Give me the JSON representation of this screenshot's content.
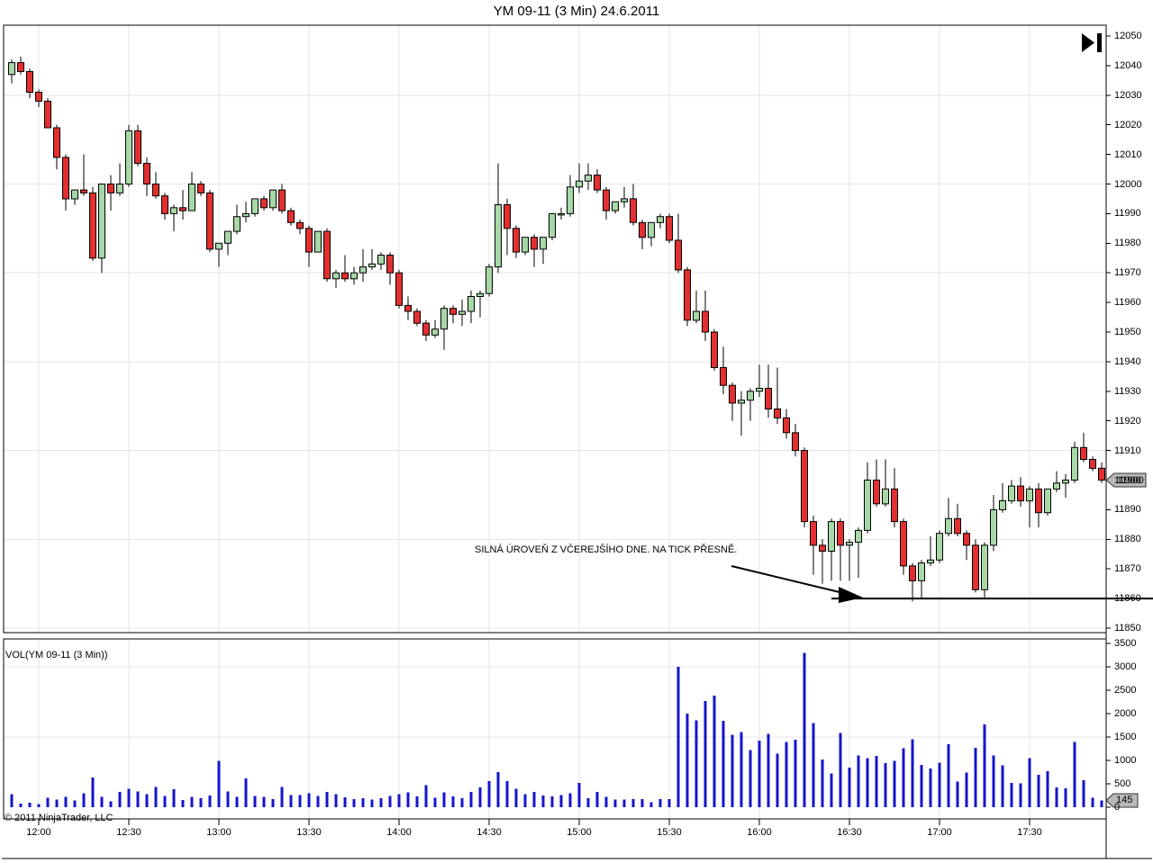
{
  "title": "YM 09-11 (3 Min)  24.6.2011",
  "chart_data": {
    "type": "candlestick",
    "title": "YM 09-11 (3 Min)  24.6.2011",
    "indicator_label": "VOL(YM 09-11 (3 Min))",
    "copyright": "© 2011 NinjaTrader, LLC",
    "annotation": "SILNÁ ÚROVEŇ Z VČEREJŠÍHO DNE. NA TICK PŘESNĚ.",
    "price_badge": "11900",
    "volume_badge": "145",
    "start_time": "11:51",
    "interval_min": 3,
    "price_axis_ticks": [
      12050,
      12040,
      12030,
      12020,
      12010,
      12000,
      11990,
      11980,
      11970,
      11960,
      11950,
      11940,
      11930,
      11920,
      11910,
      11900,
      11890,
      11880,
      11870,
      11860,
      11850
    ],
    "price_gridlines": [
      12030,
      12000,
      11970,
      11940,
      11910,
      11880,
      11850
    ],
    "volume_axis_ticks": [
      3500,
      3000,
      2500,
      2000,
      1500,
      1000,
      500,
      0
    ],
    "volume_gridlines": [
      3000,
      1500
    ],
    "x_ticks": [
      {
        "label": "12:00",
        "bar": 3
      },
      {
        "label": "12:30",
        "bar": 13
      },
      {
        "label": "13:00",
        "bar": 23
      },
      {
        "label": "13:30",
        "bar": 33
      },
      {
        "label": "14:00",
        "bar": 43
      },
      {
        "label": "14:30",
        "bar": 53
      },
      {
        "label": "15:00",
        "bar": 63
      },
      {
        "label": "15:30",
        "bar": 73
      },
      {
        "label": "16:00",
        "bar": 83
      },
      {
        "label": "16:30",
        "bar": 93
      },
      {
        "label": "17:00",
        "bar": 103
      },
      {
        "label": "17:30",
        "bar": 113
      }
    ],
    "price_range": {
      "top": 12050,
      "bottom": 11850
    },
    "volume_range": {
      "top": 3500,
      "bottom": 0
    },
    "support_line": {
      "price": 11860,
      "from_bar": 91,
      "to_bar": 119
    },
    "colors": {
      "up_candle": "#a8d8a8",
      "down_candle": "#e23030",
      "candle_outline": "#000000",
      "volume_bar": "#1414cc",
      "grid": "#e6e6e6",
      "badge": "#b9b9b9",
      "axis": "#000000"
    },
    "bars_format": [
      "open",
      "high",
      "low",
      "close",
      "volume"
    ],
    "bars": [
      [
        12037,
        12042,
        12034,
        12041,
        275
      ],
      [
        12041,
        12043,
        12037,
        12038,
        80
      ],
      [
        12038,
        12039,
        12029,
        12031,
        95
      ],
      [
        12031,
        12032,
        12026,
        12028,
        65
      ],
      [
        12028,
        12029,
        12019,
        12019,
        200
      ],
      [
        12019,
        12020,
        12005,
        12009,
        160
      ],
      [
        12009,
        12010,
        11991,
        11995,
        220
      ],
      [
        11995,
        11998,
        11993,
        11998,
        140
      ],
      [
        11998,
        12010,
        11996,
        11997,
        300
      ],
      [
        11997,
        11999,
        11974,
        11975,
        630
      ],
      [
        11975,
        12000,
        11970,
        12000,
        220
      ],
      [
        12000,
        12003,
        11991,
        11997,
        126
      ],
      [
        11997,
        12007,
        11996,
        12000,
        330
      ],
      [
        12000,
        12020,
        11999,
        12018,
        395
      ],
      [
        12018,
        12020,
        12006,
        12007,
        340
      ],
      [
        12007,
        12009,
        11996,
        12000,
        280
      ],
      [
        12000,
        12004,
        11995,
        11996,
        435
      ],
      [
        11996,
        11997,
        11988,
        11990,
        237
      ],
      [
        11990,
        11993,
        11984,
        11992,
        380
      ],
      [
        11992,
        11998,
        11988,
        11991,
        158
      ],
      [
        11991,
        12004,
        11991,
        12000,
        220
      ],
      [
        12000,
        12001,
        11996,
        11997,
        190
      ],
      [
        11997,
        11998,
        11977,
        11978,
        253
      ],
      [
        11978,
        11980,
        11972,
        11980,
        990
      ],
      [
        11980,
        11984,
        11976,
        11984,
        340
      ],
      [
        11984,
        11993,
        11983,
        11989,
        220
      ],
      [
        11989,
        11994,
        11987,
        11990,
        615
      ],
      [
        11990,
        11995,
        11989,
        11995,
        237
      ],
      [
        11995,
        11996,
        11991,
        11992,
        220
      ],
      [
        11992,
        11998,
        11991,
        11998,
        174
      ],
      [
        11998,
        12000,
        11990,
        11991,
        435
      ],
      [
        11991,
        11992,
        11986,
        11987,
        260
      ],
      [
        11987,
        11988,
        11983,
        11985,
        255
      ],
      [
        11985,
        11986,
        11972,
        11977,
        300
      ],
      [
        11977,
        11984,
        11977,
        11984,
        240
      ],
      [
        11984,
        11985,
        11967,
        11968,
        330
      ],
      [
        11968,
        11971,
        11965,
        11970,
        280
      ],
      [
        11970,
        11976,
        11967,
        11968,
        212
      ],
      [
        11968,
        11972,
        11966,
        11970,
        174
      ],
      [
        11970,
        11978,
        11967,
        11972,
        190
      ],
      [
        11972,
        11978,
        11971,
        11973,
        166
      ],
      [
        11973,
        11977,
        11971,
        11976,
        190
      ],
      [
        11976,
        11977,
        11966,
        11970,
        245
      ],
      [
        11970,
        11971,
        11958,
        11959,
        280
      ],
      [
        11959,
        11962,
        11954,
        11957,
        315
      ],
      [
        11957,
        11958,
        11952,
        11953,
        230
      ],
      [
        11953,
        11954,
        11947,
        11949,
        475
      ],
      [
        11949,
        11954,
        11948,
        11951,
        205
      ],
      [
        11951,
        11959,
        11944,
        11958,
        315
      ],
      [
        11958,
        11959,
        11953,
        11956,
        230
      ],
      [
        11956,
        11961,
        11952,
        11957,
        197
      ],
      [
        11957,
        11964,
        11953,
        11962,
        330
      ],
      [
        11962,
        11964,
        11955,
        11963,
        420
      ],
      [
        11963,
        11973,
        11962,
        11972,
        560
      ],
      [
        11972,
        12007,
        11970,
        11993,
        750
      ],
      [
        11993,
        11995,
        11976,
        11985,
        560
      ],
      [
        11985,
        11986,
        11975,
        11977,
        395
      ],
      [
        11977,
        11982,
        11976,
        11982,
        280
      ],
      [
        11982,
        11983,
        11972,
        11978,
        330
      ],
      [
        11978,
        11982,
        11973,
        11982,
        250
      ],
      [
        11982,
        11990,
        11981,
        11990,
        230
      ],
      [
        11990,
        11992,
        11988,
        11990,
        260
      ],
      [
        11990,
        12003,
        11989,
        11999,
        300
      ],
      [
        11999,
        12007,
        11997,
        12001,
        520
      ],
      [
        12001,
        12007,
        11998,
        12003,
        190
      ],
      [
        12003,
        12005,
        11997,
        11998,
        330
      ],
      [
        11998,
        11999,
        11988,
        11991,
        225
      ],
      [
        11991,
        11994,
        11990,
        11994,
        160
      ],
      [
        11994,
        11999,
        11992,
        11995,
        160
      ],
      [
        11995,
        12000,
        11986,
        11987,
        175
      ],
      [
        11987,
        11988,
        11978,
        11982,
        175
      ],
      [
        11982,
        11987,
        11979,
        11987,
        110
      ],
      [
        11987,
        11990,
        11985,
        11989,
        175
      ],
      [
        11989,
        11990,
        11980,
        11981,
        175
      ],
      [
        11981,
        11990,
        11970,
        11971,
        3000
      ],
      [
        11971,
        11972,
        11952,
        11954,
        2000
      ],
      [
        11954,
        11964,
        11953,
        11957,
        1860
      ],
      [
        11957,
        11964,
        11947,
        11950,
        2270
      ],
      [
        11950,
        11951,
        11937,
        11938,
        2380
      ],
      [
        11938,
        11945,
        11929,
        11932,
        1850
      ],
      [
        11932,
        11933,
        11920,
        11926,
        1550
      ],
      [
        11926,
        11930,
        11915,
        11927,
        1610
      ],
      [
        11927,
        11931,
        11920,
        11930,
        1225
      ],
      [
        11930,
        11939,
        11928,
        11931,
        1425
      ],
      [
        11931,
        11939,
        11921,
        11924,
        1570
      ],
      [
        11924,
        11938,
        11919,
        11921,
        1140
      ],
      [
        11921,
        11924,
        11914,
        11916,
        1390
      ],
      [
        11916,
        11919,
        11908,
        11910,
        1440
      ],
      [
        11910,
        11911,
        11884,
        11886,
        3300
      ],
      [
        11886,
        11888,
        11868,
        11878,
        1800
      ],
      [
        11878,
        11880,
        11865,
        11876,
        1020
      ],
      [
        11876,
        11887,
        11866,
        11886,
        720
      ],
      [
        11886,
        11887,
        11866,
        11878,
        1590
      ],
      [
        11878,
        11880,
        11866,
        11879,
        850
      ],
      [
        11879,
        11884,
        11867,
        11883,
        1110
      ],
      [
        11883,
        11906,
        11882,
        11900,
        1050
      ],
      [
        11900,
        11907,
        11891,
        11892,
        1095
      ],
      [
        11892,
        11907,
        11891,
        11897,
        945
      ],
      [
        11897,
        11904,
        11884,
        11886,
        990
      ],
      [
        11886,
        11887,
        11868,
        11871,
        1255
      ],
      [
        11871,
        11872,
        11859,
        11866,
        1455
      ],
      [
        11866,
        11873,
        11860,
        11872,
        905
      ],
      [
        11872,
        11881,
        11871,
        11873,
        830
      ],
      [
        11873,
        11883,
        11872,
        11882,
        955
      ],
      [
        11882,
        11894,
        11881,
        11887,
        1345
      ],
      [
        11887,
        11892,
        11881,
        11882,
        550
      ],
      [
        11882,
        11883,
        11873,
        11878,
        740
      ],
      [
        11878,
        11880,
        11862,
        11863,
        1270
      ],
      [
        11863,
        11879,
        11860,
        11878,
        1770
      ],
      [
        11878,
        11895,
        11876,
        11890,
        1110
      ],
      [
        11890,
        11899,
        11889,
        11893,
        895
      ],
      [
        11893,
        11900,
        11892,
        11898,
        520
      ],
      [
        11898,
        11901,
        11891,
        11893,
        505
      ],
      [
        11893,
        11898,
        11884,
        11897,
        1050
      ],
      [
        11897,
        11899,
        11884,
        11889,
        695
      ],
      [
        11889,
        11897,
        11888,
        11897,
        770
      ],
      [
        11897,
        11903,
        11896,
        11899,
        425
      ],
      [
        11899,
        11902,
        11894,
        11900,
        405
      ],
      [
        11900,
        11913,
        11899,
        11911,
        1395
      ],
      [
        11911,
        11916,
        11906,
        11907,
        580
      ],
      [
        11907,
        11908,
        11903,
        11904,
        205
      ],
      [
        11904,
        11906,
        11899,
        11900,
        145
      ]
    ]
  }
}
